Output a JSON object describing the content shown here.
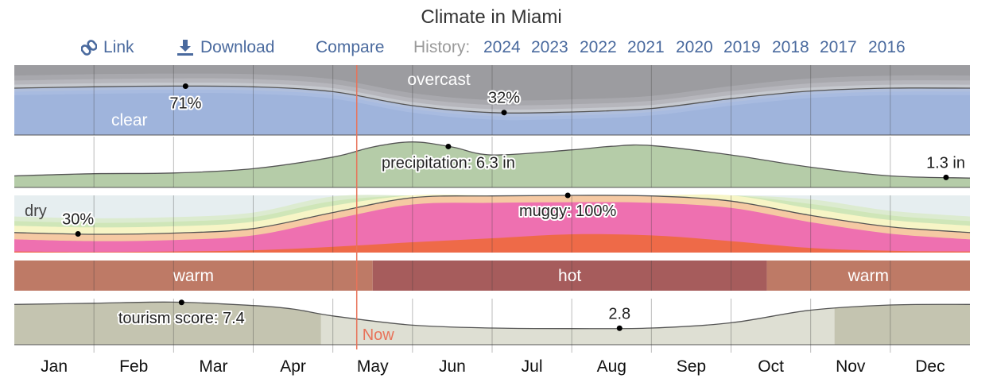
{
  "page": {
    "title": "Climate in Miami"
  },
  "toolbar": {
    "link_label": "Link",
    "download_label": "Download",
    "compare_label": "Compare",
    "history_label": "History:",
    "years": [
      "2024",
      "2023",
      "2022",
      "2021",
      "2020",
      "2019",
      "2018",
      "2017",
      "2016"
    ],
    "link_icon": "link-icon",
    "download_icon": "download-icon"
  },
  "colors": {
    "link": "#4a6a9e",
    "now_line": "#e8735a",
    "warm_band": "#be7a66",
    "hot_band": "#a65c5c",
    "precip_fill": "#b5cca8",
    "clear_fill": "#9fb4dc",
    "overcast_fill": "#9c9ca0",
    "muggy_fill": "#ee70b0",
    "oppressive_fill": "#ee6a48",
    "tourism_fill": "#c4c4b0"
  },
  "chart_data": {
    "type": "area",
    "months": [
      "Jan",
      "Feb",
      "Mar",
      "Apr",
      "May",
      "Jun",
      "Jul",
      "Aug",
      "Sep",
      "Oct",
      "Nov",
      "Dec"
    ],
    "now_label": "Now",
    "now_month": 4.3,
    "panels": {
      "cloud_cover": {
        "clear_label": "clear",
        "overcast_label": "overcast",
        "x_months": [
          0,
          1,
          2,
          3,
          4,
          5,
          6,
          7,
          8,
          9,
          10,
          11,
          12
        ],
        "clear_pct": [
          67,
          69,
          70,
          69,
          62,
          42,
          32,
          33,
          38,
          52,
          63,
          67,
          67
        ],
        "annotations": [
          {
            "label": "71%",
            "month": 2.15,
            "value": 71
          },
          {
            "label": "32%",
            "month": 6.15,
            "value": 32
          }
        ]
      },
      "precipitation": {
        "label_text": "precipitation: 6.3 in",
        "max_value": 6.3,
        "units": "in",
        "x_months": [
          0,
          1,
          2,
          3,
          4,
          4.5,
          5,
          5.5,
          6,
          7,
          7.5,
          8,
          9,
          10,
          11,
          12
        ],
        "values": [
          1.6,
          1.9,
          2.0,
          2.6,
          4.2,
          5.6,
          6.3,
          5.6,
          4.5,
          5.2,
          5.7,
          5.8,
          4.5,
          2.8,
          1.6,
          1.3
        ],
        "annotations": [
          {
            "label": "precipitation: 6.3 in",
            "month": 5.45,
            "value": 6.3
          },
          {
            "label": "1.3 in",
            "month": 11.7,
            "value": 1.3
          }
        ]
      },
      "humidity": {
        "dry_label": "dry",
        "label_text": "muggy: 100%",
        "x_months": [
          0,
          1,
          2,
          3,
          4,
          5,
          6,
          7,
          8,
          9,
          10,
          11,
          12
        ],
        "muggy_pct": [
          35,
          32,
          34,
          42,
          70,
          96,
          99,
          100,
          99,
          90,
          65,
          45,
          35
        ],
        "oppressive_pct": [
          2,
          1,
          2,
          4,
          10,
          18,
          25,
          32,
          30,
          20,
          8,
          3,
          2
        ],
        "annotations": [
          {
            "label": "30%",
            "month": 0.8,
            "value": 30
          },
          {
            "label": "muggy: 100%",
            "month": 6.95,
            "value": 100
          }
        ]
      },
      "temperature_band": {
        "segments": [
          {
            "label": "warm",
            "start_month": 0,
            "end_month": 4.5
          },
          {
            "label": "hot",
            "start_month": 4.5,
            "end_month": 9.45
          },
          {
            "label": "warm",
            "start_month": 9.45,
            "end_month": 12
          }
        ]
      },
      "tourism": {
        "label_text": "tourism score: 7.4",
        "x_months": [
          0,
          1,
          2,
          3,
          3.5,
          4,
          5,
          6,
          7,
          8,
          9,
          10,
          11,
          12
        ],
        "scores": [
          7.0,
          7.2,
          7.4,
          6.8,
          6.2,
          5.0,
          3.4,
          2.9,
          2.8,
          2.9,
          3.8,
          6.0,
          6.9,
          7.0
        ],
        "best_periods": [
          {
            "start_month": 0,
            "end_month": 3.85
          },
          {
            "start_month": 10.3,
            "end_month": 12
          }
        ],
        "annotations": [
          {
            "label": "tourism score: 7.4",
            "month": 2.1,
            "value": 7.4
          },
          {
            "label": "2.8",
            "month": 7.6,
            "value": 2.8
          }
        ]
      }
    }
  }
}
